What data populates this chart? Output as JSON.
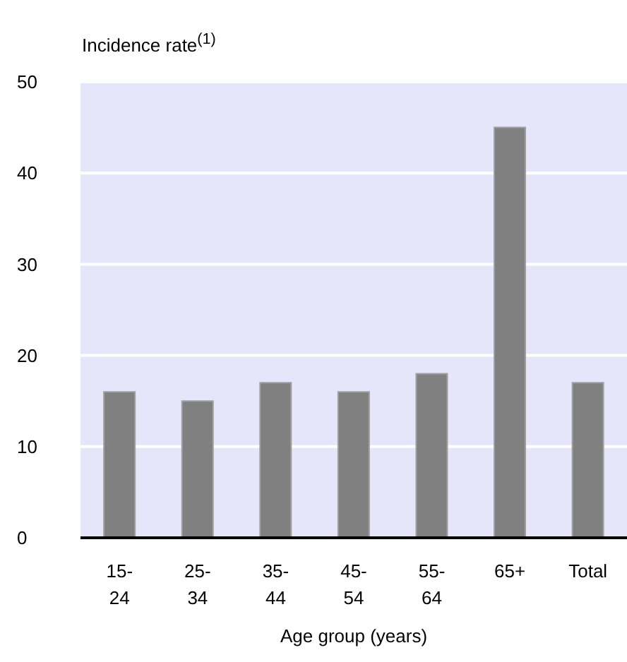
{
  "chart_data": {
    "type": "bar",
    "ylabel": "Incidence rate$^{(1)}$",
    "xlabel": "Age group (years)",
    "categories": [
      "15-24",
      "25-34",
      "35-44",
      "45-54",
      "55-64",
      "65+",
      "Total"
    ],
    "values": [
      16,
      15,
      17,
      16,
      18,
      45,
      17
    ],
    "color": "#808080",
    "ylim": [
      0,
      50
    ],
    "yticks": [
      0,
      10,
      20,
      30,
      40,
      50
    ],
    "grid": "y"
  }
}
